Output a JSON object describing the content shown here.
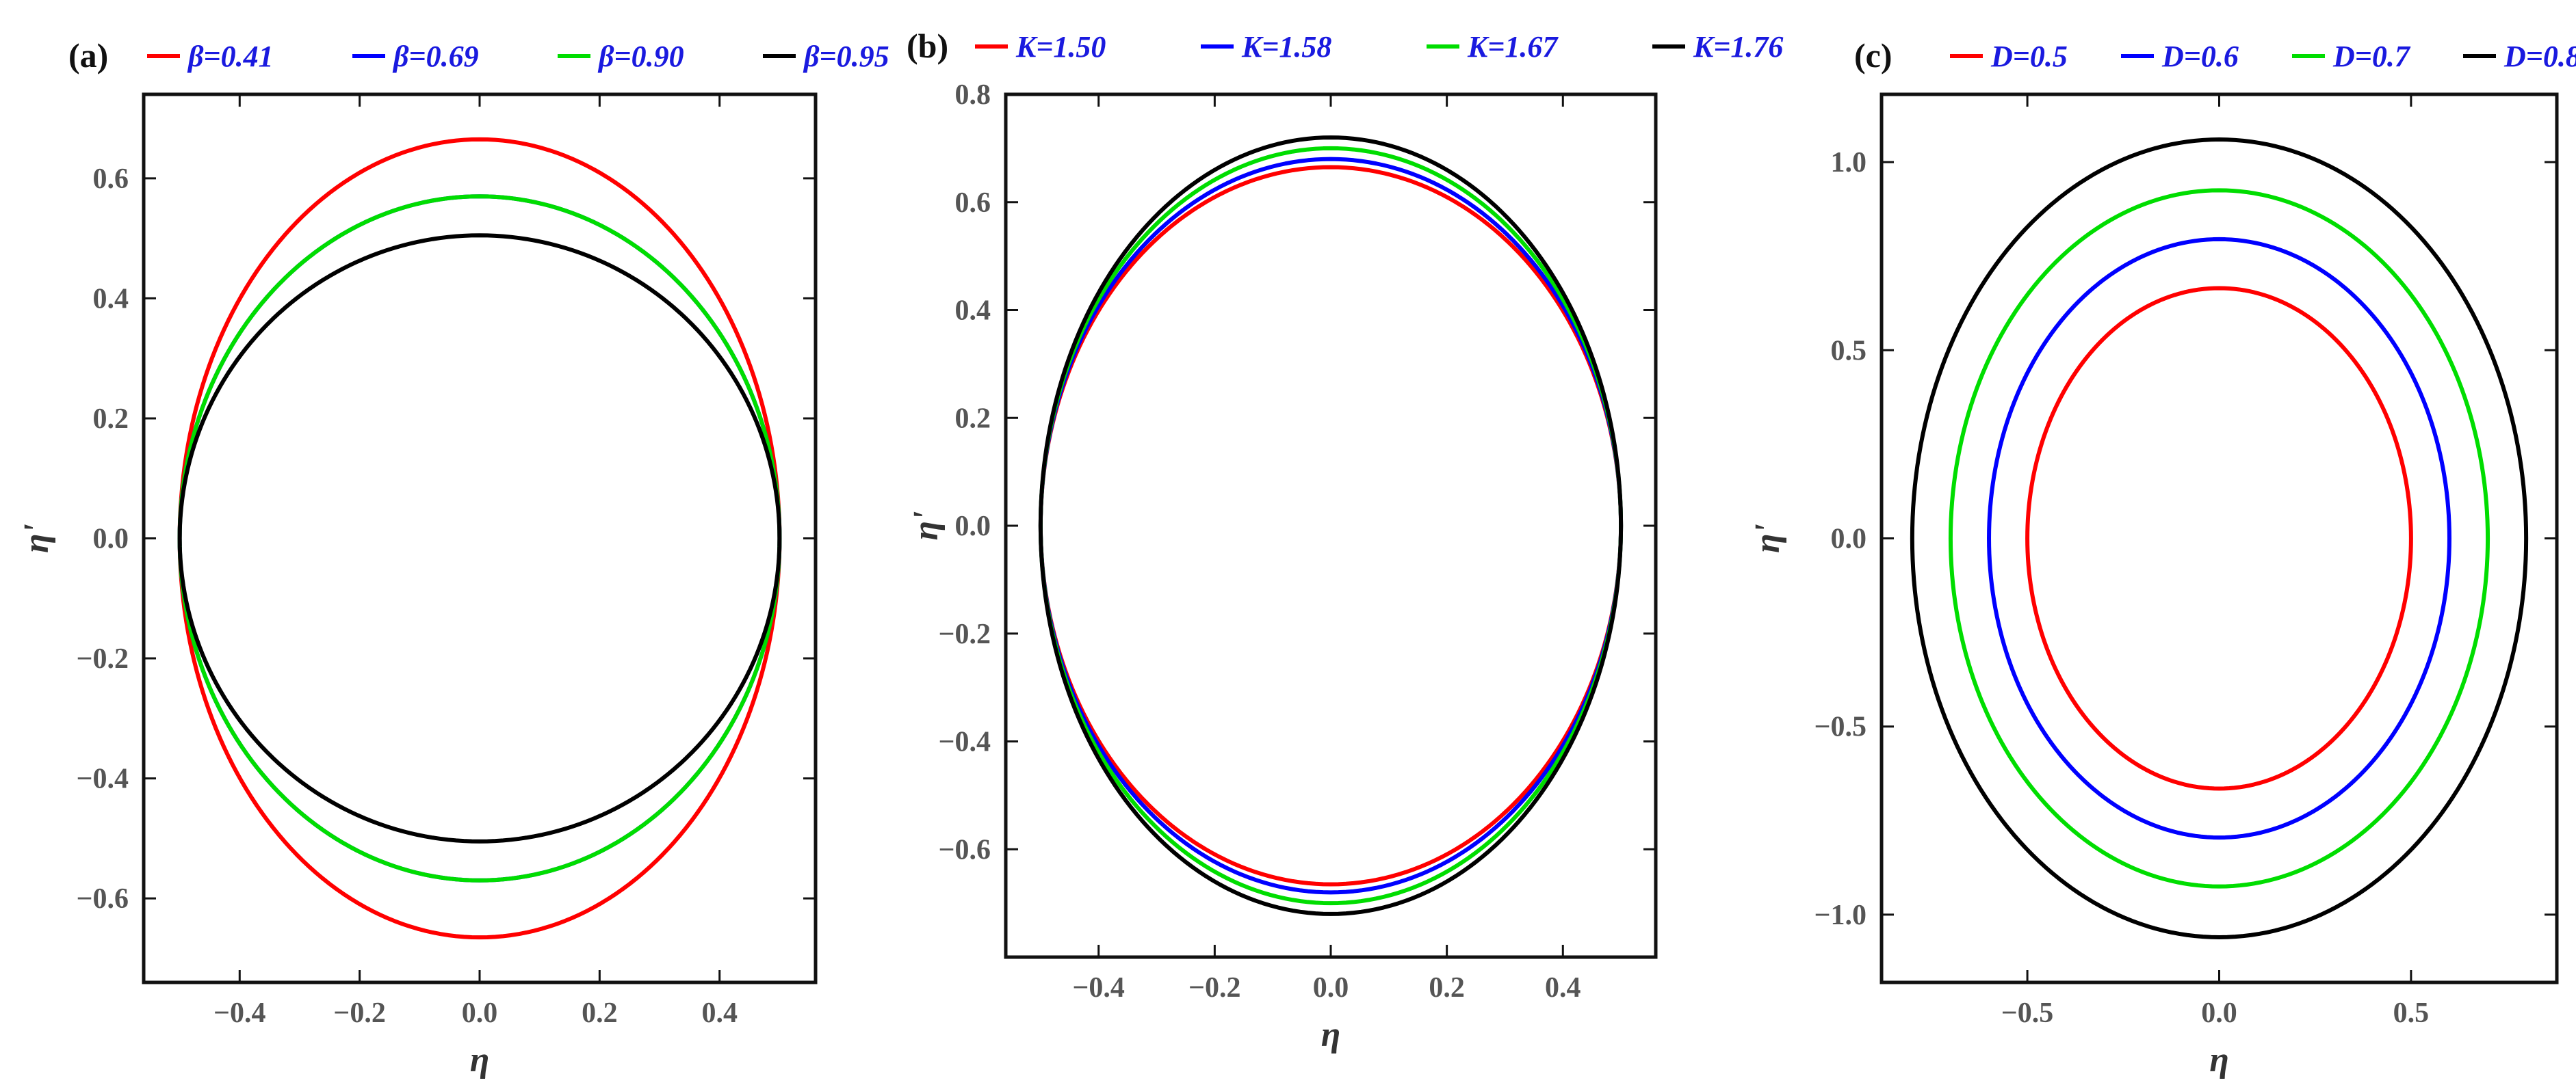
{
  "chart_data": [
    {
      "type": "line",
      "panel_label": "(a)",
      "xlabel": "η",
      "ylabel": "η'",
      "xlim": [
        -0.56,
        0.56
      ],
      "ylim": [
        -0.74,
        0.74
      ],
      "xticks": [
        -0.4,
        -0.2,
        0.0,
        0.2,
        0.4
      ],
      "xtick_labels": [
        "−0.4",
        "−0.2",
        "0.0",
        "0.2",
        "0.4"
      ],
      "yticks": [
        -0.6,
        -0.4,
        -0.2,
        0.0,
        0.2,
        0.4,
        0.6
      ],
      "ytick_labels": [
        "−0.6",
        "−0.4",
        "−0.2",
        "0.0",
        "0.2",
        "0.4",
        "0.6"
      ],
      "legend_position": "top",
      "series": [
        {
          "name": "β=0.41",
          "color": "#ff0000",
          "shape": "closed-orbit",
          "x_amplitude": 0.5,
          "y_amplitude": 0.665
        },
        {
          "name": "β=0.69",
          "color": "#0000ff",
          "shape": "closed-orbit",
          "x_amplitude": 0.5,
          "y_amplitude": 0.57
        },
        {
          "name": "β=0.90",
          "color": "#00dd00",
          "shape": "closed-orbit",
          "x_amplitude": 0.5,
          "y_amplitude": 0.57
        },
        {
          "name": "β=0.95",
          "color": "#000000",
          "shape": "closed-orbit",
          "x_amplitude": 0.5,
          "y_amplitude": 0.505
        }
      ]
    },
    {
      "type": "line",
      "panel_label": "(b)",
      "xlabel": "η",
      "ylabel": "η'",
      "xlim": [
        -0.56,
        0.56
      ],
      "ylim": [
        -0.8,
        0.8
      ],
      "xticks": [
        -0.4,
        -0.2,
        0.0,
        0.2,
        0.4
      ],
      "xtick_labels": [
        "−0.4",
        "−0.2",
        "0.0",
        "0.2",
        "0.4"
      ],
      "yticks": [
        -0.6,
        -0.4,
        -0.2,
        0.0,
        0.2,
        0.4,
        0.6,
        0.8
      ],
      "ytick_labels": [
        "−0.6",
        "−0.4",
        "−0.2",
        "0.0",
        "0.2",
        "0.4",
        "0.6",
        "0.8"
      ],
      "legend_position": "top",
      "series": [
        {
          "name": "K=1.50",
          "color": "#ff0000",
          "shape": "closed-orbit",
          "x_amplitude": 0.5,
          "y_amplitude": 0.665
        },
        {
          "name": "K=1.58",
          "color": "#0000ff",
          "shape": "closed-orbit",
          "x_amplitude": 0.5,
          "y_amplitude": 0.68
        },
        {
          "name": "K=1.67",
          "color": "#00dd00",
          "shape": "closed-orbit",
          "x_amplitude": 0.5,
          "y_amplitude": 0.7
        },
        {
          "name": "K=1.76",
          "color": "#000000",
          "shape": "closed-orbit",
          "x_amplitude": 0.5,
          "y_amplitude": 0.72
        }
      ]
    },
    {
      "type": "line",
      "panel_label": "(c)",
      "xlabel": "η",
      "ylabel": "η'",
      "xlim": [
        -0.88,
        0.88
      ],
      "ylim": [
        -1.18,
        1.18
      ],
      "xticks": [
        -0.5,
        0.0,
        0.5
      ],
      "xtick_labels": [
        "−0.5",
        "0.0",
        "0.5"
      ],
      "yticks": [
        -1.0,
        -0.5,
        0.0,
        0.5,
        1.0
      ],
      "ytick_labels": [
        "−1.0",
        "−0.5",
        "0.0",
        "0.5",
        "1.0"
      ],
      "legend_position": "top",
      "series": [
        {
          "name": "D=0.5",
          "color": "#ff0000",
          "shape": "closed-orbit",
          "x_amplitude": 0.5,
          "y_amplitude": 0.665
        },
        {
          "name": "D=0.6",
          "color": "#0000ff",
          "shape": "closed-orbit",
          "x_amplitude": 0.6,
          "y_amplitude": 0.795
        },
        {
          "name": "D=0.7",
          "color": "#00dd00",
          "shape": "closed-orbit",
          "x_amplitude": 0.7,
          "y_amplitude": 0.925
        },
        {
          "name": "D=0.8",
          "color": "#000000",
          "shape": "closed-orbit",
          "x_amplitude": 0.8,
          "y_amplitude": 1.06
        }
      ]
    }
  ]
}
